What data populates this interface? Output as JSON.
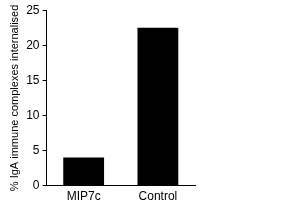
{
  "chart_data": {
    "type": "bar",
    "y_label": "% IgA immune complexes internalised",
    "categories": [
      "MIP7c",
      "Control"
    ],
    "values": [
      4,
      22.5
    ],
    "color": "#000000",
    "ylim": [
      0,
      25
    ],
    "yticks": [
      0,
      5,
      10,
      15,
      20,
      25
    ],
    "grid": false
  }
}
